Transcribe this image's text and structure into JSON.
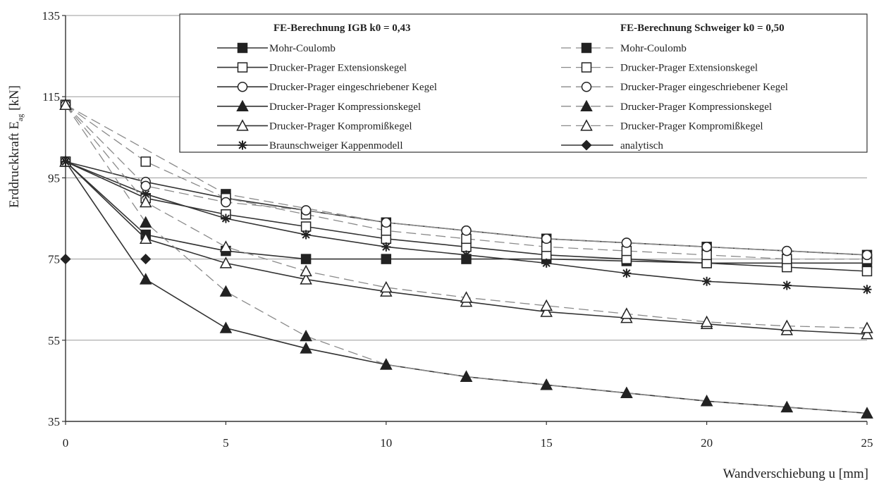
{
  "chart_data": {
    "type": "line",
    "xlabel": "Wandverschiebung u [mm]",
    "ylabel_main": "Erddruckkraft E",
    "ylabel_sub": "ag",
    "ylabel_unit": " [kN]",
    "xlim": [
      0,
      25
    ],
    "ylim": [
      35,
      135
    ],
    "xticks": [
      0,
      5,
      10,
      15,
      20,
      25
    ],
    "yticks": [
      35,
      55,
      75,
      95,
      115,
      135
    ],
    "grid": "horizontal",
    "legend_placement": "top-right",
    "legend_groups": [
      {
        "title": "FE-Berechnung IGB  k0 = 0,43"
      },
      {
        "title": "FE-Berechnung Schweiger   k0 = 0,50"
      }
    ],
    "series": [
      {
        "name": "Mohr-Coulomb",
        "group": 0,
        "marker": "square-filled",
        "dash": false,
        "x": [
          0,
          2.5,
          5,
          7.5,
          10,
          12.5,
          15,
          17.5,
          20,
          22.5,
          25
        ],
        "y": [
          99,
          81,
          77,
          75,
          75,
          75,
          75,
          74.5,
          74,
          74,
          74
        ]
      },
      {
        "name": "Drucker-Prager Extensionskegel",
        "group": 0,
        "marker": "square-open",
        "dash": false,
        "x": [
          0,
          2.5,
          5,
          7.5,
          10,
          12.5,
          15,
          17.5,
          20,
          22.5,
          25
        ],
        "y": [
          99,
          90,
          86,
          83,
          80,
          78,
          76,
          75,
          74,
          73,
          72
        ]
      },
      {
        "name": "Drucker-Prager eingeschriebener Kegel",
        "group": 0,
        "marker": "circle-open",
        "dash": false,
        "x": [
          0,
          2.5,
          5,
          7.5,
          10,
          12.5,
          15,
          17.5,
          20,
          22.5,
          25
        ],
        "y": [
          99,
          94,
          90,
          87,
          84,
          82,
          80,
          79,
          78,
          77,
          76
        ]
      },
      {
        "name": "Drucker-Prager Kompressionskegel",
        "group": 0,
        "marker": "triangle-filled",
        "dash": false,
        "x": [
          0,
          2.5,
          5,
          7.5,
          10,
          12.5,
          15,
          17.5,
          20,
          22.5,
          25
        ],
        "y": [
          99,
          70,
          58,
          53,
          49,
          46,
          44,
          42,
          40,
          38.5,
          37
        ]
      },
      {
        "name": "Drucker-Prager Kompromißkegel",
        "group": 0,
        "marker": "triangle-open",
        "dash": false,
        "x": [
          0,
          2.5,
          5,
          7.5,
          10,
          12.5,
          15,
          17.5,
          20,
          22.5,
          25
        ],
        "y": [
          99,
          80,
          74,
          70,
          67,
          64.5,
          62,
          60.5,
          59,
          57.5,
          56.5
        ]
      },
      {
        "name": "Braunschweiger Kappenmodell",
        "group": 0,
        "marker": "star",
        "dash": false,
        "x": [
          0,
          2.5,
          5,
          7.5,
          10,
          12.5,
          15,
          17.5,
          20,
          22.5,
          25
        ],
        "y": [
          99,
          91,
          85,
          81,
          78,
          76,
          74,
          71.5,
          69.5,
          68.5,
          67.5
        ]
      },
      {
        "name": "Mohr-Coulomb",
        "group": 1,
        "marker": "square-filled",
        "dash": true,
        "x": [
          0,
          5,
          10,
          15,
          20,
          25
        ],
        "y": [
          113,
          91,
          84,
          80,
          78,
          76
        ]
      },
      {
        "name": "Drucker-Prager Extensionskegel",
        "group": 1,
        "marker": "square-open",
        "dash": true,
        "x": [
          0,
          2.5,
          5,
          7.5,
          10,
          12.5,
          15,
          17.5,
          20,
          22.5,
          25
        ],
        "y": [
          113,
          99,
          90,
          86,
          82,
          80,
          78,
          77,
          76,
          75,
          75
        ]
      },
      {
        "name": "Drucker-Prager eingeschriebener Kegel",
        "group": 1,
        "marker": "circle-open",
        "dash": true,
        "x": [
          0,
          2.5,
          5,
          7.5,
          10,
          12.5,
          15,
          17.5,
          20,
          22.5,
          25
        ],
        "y": [
          113,
          93,
          89,
          87,
          84,
          82,
          80,
          79,
          78,
          77,
          76
        ]
      },
      {
        "name": "Drucker-Prager Kompressionskegel",
        "group": 1,
        "marker": "triangle-filled",
        "dash": true,
        "x": [
          0,
          2.5,
          5,
          7.5,
          10,
          12.5,
          15,
          17.5,
          20,
          22.5,
          25
        ],
        "y": [
          113,
          84,
          67,
          56,
          49,
          46,
          44,
          42,
          40,
          38.5,
          37
        ]
      },
      {
        "name": "Drucker-Prager Kompromißkegel",
        "group": 1,
        "marker": "triangle-open",
        "dash": true,
        "x": [
          0,
          2.5,
          5,
          7.5,
          10,
          12.5,
          15,
          17.5,
          20,
          22.5,
          25
        ],
        "y": [
          113,
          89,
          78,
          72,
          68,
          65.5,
          63.5,
          61.5,
          59.5,
          58.5,
          58
        ]
      },
      {
        "name": "analytisch",
        "group": 1,
        "marker": "diamond-filled",
        "dash": false,
        "x": [
          0,
          2.5
        ],
        "y": [
          75,
          75
        ]
      }
    ]
  }
}
